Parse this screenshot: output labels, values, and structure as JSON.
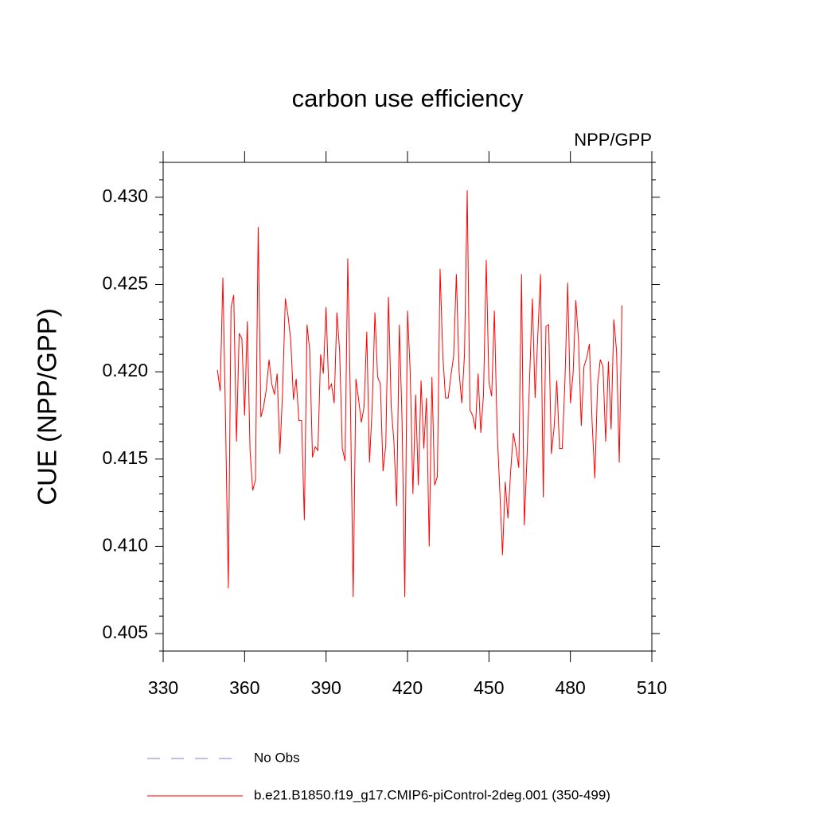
{
  "chart_data": {
    "type": "line",
    "title": "carbon use efficiency",
    "subtitle": "NPP/GPP",
    "y_label": "CUE  (NPP/GPP)",
    "xlim": [
      330,
      510
    ],
    "xticks": [
      330,
      360,
      390,
      420,
      450,
      480,
      510
    ],
    "ylim": [
      0.404,
      0.432
    ],
    "yticks": [
      0.405,
      {
        "value": 0.41,
        "label": "0.410"
      },
      0.415,
      {
        "value": 0.42,
        "label": "0.420"
      },
      0.425,
      {
        "value": 0.43,
        "label": "0.430"
      }
    ],
    "yminorticks": [
      0.404,
      0.406,
      0.407,
      0.408,
      0.409,
      0.411,
      0.412,
      0.413,
      0.414,
      0.416,
      0.417,
      0.418,
      0.419,
      0.421,
      0.422,
      0.423,
      0.424,
      0.426,
      0.427,
      0.428,
      0.429,
      0.431,
      0.432
    ],
    "x": [
      350,
      351,
      352,
      353,
      354,
      355,
      356,
      357,
      358,
      359,
      360,
      361,
      362,
      363,
      364,
      365,
      366,
      367,
      368,
      369,
      370,
      371,
      372,
      373,
      374,
      375,
      376,
      377,
      378,
      379,
      380,
      381,
      382,
      383,
      384,
      385,
      386,
      387,
      388,
      389,
      390,
      391,
      392,
      393,
      394,
      395,
      396,
      397,
      398,
      399,
      400,
      401,
      402,
      403,
      404,
      405,
      406,
      407,
      408,
      409,
      410,
      411,
      412,
      413,
      414,
      415,
      416,
      417,
      418,
      419,
      420,
      421,
      422,
      423,
      424,
      425,
      426,
      427,
      428,
      429,
      430,
      431,
      432,
      433,
      434,
      435,
      436,
      437,
      438,
      439,
      440,
      441,
      442,
      443,
      444,
      445,
      446,
      447,
      448,
      449,
      450,
      451,
      452,
      453,
      454,
      455,
      456,
      457,
      458,
      459,
      460,
      461,
      462,
      463,
      464,
      465,
      466,
      467,
      468,
      469,
      470,
      471,
      472,
      473,
      474,
      475,
      476,
      477,
      478,
      479,
      480,
      481,
      482,
      483,
      484,
      485,
      486,
      487,
      488,
      489,
      490,
      491,
      492,
      493,
      494,
      495,
      496,
      497,
      498,
      499
    ],
    "series": [
      {
        "name": "b.e21.B1850.f19_g17.CMIP6-piControl-2deg.001 (350-499)",
        "color": "#ff0000",
        "values": [
          0.4201,
          0.4189,
          0.4254,
          0.417,
          0.4076,
          0.4237,
          0.4244,
          0.416,
          0.4222,
          0.4219,
          0.4175,
          0.4229,
          0.4155,
          0.4132,
          0.4138,
          0.4283,
          0.4174,
          0.418,
          0.419,
          0.4207,
          0.4193,
          0.4187,
          0.4199,
          0.4153,
          0.4189,
          0.4242,
          0.4232,
          0.4218,
          0.4184,
          0.4196,
          0.4172,
          0.4172,
          0.4115,
          0.4227,
          0.4212,
          0.4151,
          0.4157,
          0.4155,
          0.421,
          0.4199,
          0.4237,
          0.419,
          0.4193,
          0.4182,
          0.4234,
          0.4212,
          0.4156,
          0.4149,
          0.4265,
          0.418,
          0.4071,
          0.4196,
          0.4184,
          0.4171,
          0.418,
          0.4223,
          0.4148,
          0.418,
          0.4234,
          0.4197,
          0.4193,
          0.4143,
          0.4158,
          0.4243,
          0.418,
          0.416,
          0.4123,
          0.4227,
          0.4172,
          0.4071,
          0.4235,
          0.42,
          0.413,
          0.4187,
          0.4135,
          0.4195,
          0.4156,
          0.4185,
          0.41,
          0.4197,
          0.4135,
          0.414,
          0.4259,
          0.421,
          0.4185,
          0.4185,
          0.4198,
          0.4209,
          0.4256,
          0.42,
          0.4182,
          0.421,
          0.4304,
          0.4178,
          0.4175,
          0.4167,
          0.4199,
          0.4165,
          0.4187,
          0.4264,
          0.4194,
          0.4186,
          0.4235,
          0.4167,
          0.4132,
          0.4095,
          0.4137,
          0.4116,
          0.4143,
          0.4165,
          0.4156,
          0.4145,
          0.4256,
          0.4112,
          0.415,
          0.4197,
          0.4242,
          0.4185,
          0.4221,
          0.4256,
          0.4128,
          0.4226,
          0.4227,
          0.4153,
          0.4168,
          0.4195,
          0.4156,
          0.4156,
          0.4195,
          0.4251,
          0.4182,
          0.4199,
          0.4241,
          0.4218,
          0.4169,
          0.4203,
          0.4208,
          0.4216,
          0.4171,
          0.4139,
          0.4192,
          0.4207,
          0.4203,
          0.416,
          0.4206,
          0.4167,
          0.423,
          0.4212,
          0.4148,
          0.4238
        ]
      }
    ],
    "legend": {
      "entries": [
        {
          "name": "No Obs",
          "color": "#8878c8",
          "style": "dashed"
        }
      ]
    }
  }
}
